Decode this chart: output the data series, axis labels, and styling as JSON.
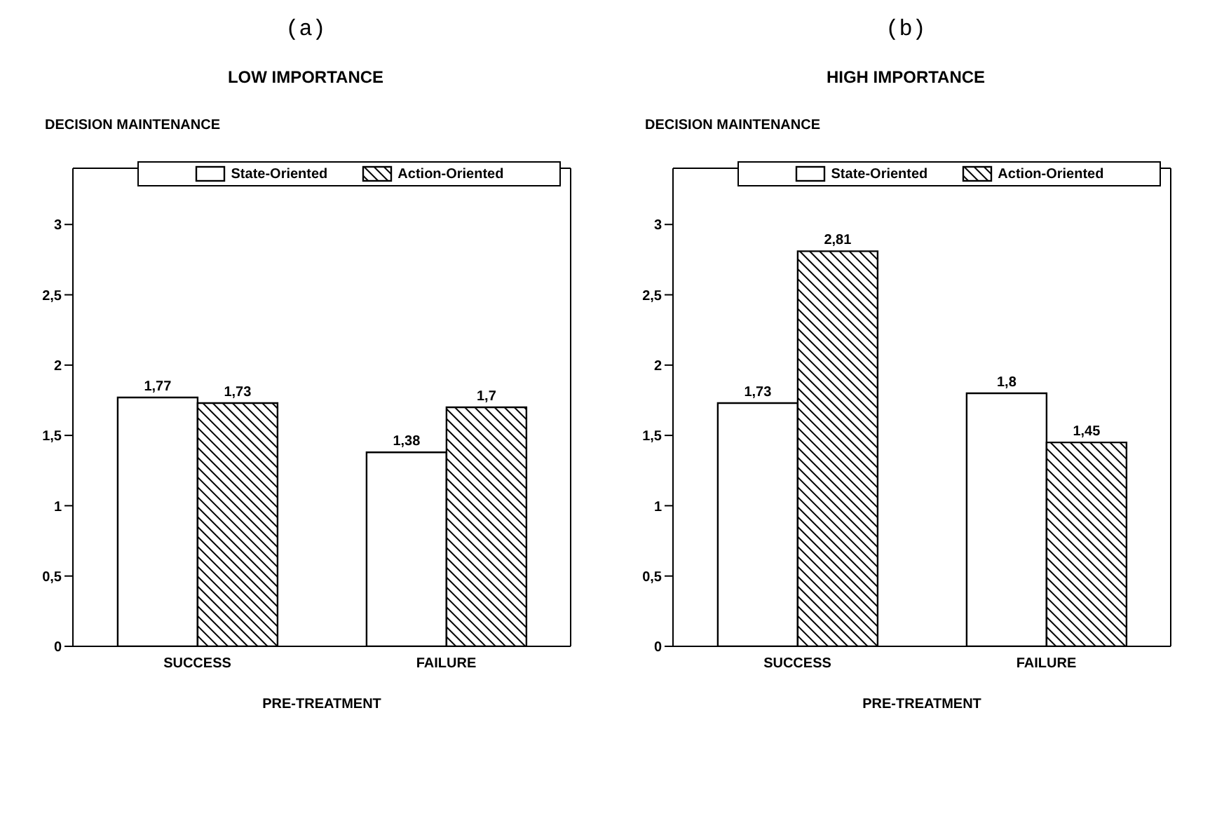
{
  "chart_data": [
    {
      "type": "bar",
      "title": "(a)",
      "subtitle": "LOW IMPORTANCE",
      "ylabel": "DECISION MAINTENANCE",
      "xlabel": "PRE-TREATMENT",
      "categories": [
        "SUCCESS",
        "FAILURE"
      ],
      "series": [
        {
          "name": "State-Oriented",
          "color": "#ffffff",
          "values": [
            1.77,
            1.38
          ],
          "value_labels": [
            "1,77",
            "1,38"
          ]
        },
        {
          "name": "Action-Oriented",
          "color": "#000000",
          "values": [
            1.73,
            1.7
          ],
          "value_labels": [
            "1,73",
            "1,7"
          ]
        }
      ],
      "ylim": [
        0,
        3.4
      ],
      "yticks": [
        0,
        {
          "value": 0.5,
          "label": "0,5"
        },
        1,
        {
          "value": 1.5,
          "label": "1,5"
        },
        2,
        {
          "value": 2.5,
          "label": "2,5"
        },
        3
      ],
      "grid": false,
      "legend": "top"
    },
    {
      "type": "bar",
      "title": "(b)",
      "subtitle": "HIGH IMPORTANCE",
      "ylabel": "DECISION MAINTENANCE",
      "xlabel": "PRE-TREATMENT",
      "categories": [
        "SUCCESS",
        "FAILURE"
      ],
      "series": [
        {
          "name": "State-Oriented",
          "color": "#ffffff",
          "values": [
            1.73,
            1.8
          ],
          "value_labels": [
            "1,73",
            "1,8"
          ]
        },
        {
          "name": "Action-Oriented",
          "color": "#000000",
          "values": [
            2.81,
            1.45
          ],
          "value_labels": [
            "2,81",
            "1,45"
          ]
        }
      ],
      "ylim": [
        0,
        3.4
      ],
      "yticks": [
        0,
        {
          "value": 0.5,
          "label": "0,5"
        },
        1,
        {
          "value": 1.5,
          "label": "1,5"
        },
        2,
        {
          "value": 2.5,
          "label": "2,5"
        },
        3
      ],
      "grid": false,
      "legend": "top"
    }
  ]
}
